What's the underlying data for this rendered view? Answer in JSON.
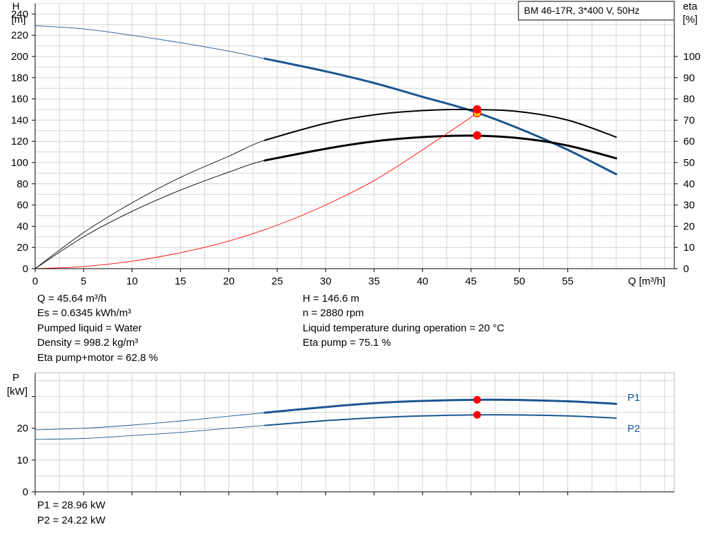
{
  "chart_data": {
    "type": "line",
    "title": "BM 46-17R, 3*400 V, 50Hz",
    "x": {
      "label": "Q [m³/h]",
      "range": [
        0,
        66
      ],
      "ticks": [
        0,
        5,
        10,
        15,
        20,
        25,
        30,
        35,
        40,
        45,
        50,
        55
      ]
    },
    "top_chart": {
      "ylabel_left": [
        "H",
        "[m]"
      ],
      "ylabel_right": [
        "eta",
        "[%]"
      ],
      "ylim_left": [
        0,
        250
      ],
      "ylim_right": [
        0,
        125
      ],
      "yticks_left": [
        0,
        20,
        40,
        60,
        80,
        100,
        120,
        140,
        160,
        180,
        200,
        220,
        240
      ],
      "yticks_right": [
        0,
        10,
        20,
        30,
        40,
        50,
        60,
        70,
        80,
        90,
        100
      ],
      "grid": true,
      "series": [
        {
          "id": "H",
          "axis": "left",
          "color": "#1a5590",
          "work_range": [
            23.7,
            60
          ],
          "x": [
            0,
            5,
            10,
            15,
            20,
            23.7,
            30,
            35,
            40,
            45,
            50,
            55,
            60
          ],
          "y": [
            229,
            226,
            220,
            213,
            205,
            198,
            186,
            175,
            162,
            149,
            132,
            112,
            89
          ]
        },
        {
          "id": "eta_pump",
          "axis": "right",
          "color": "#000000",
          "work_range": [
            23.7,
            60
          ],
          "x": [
            0,
            5,
            10,
            15,
            20,
            23.7,
            30,
            35,
            40,
            45,
            50,
            55,
            60
          ],
          "y": [
            0,
            17,
            31,
            43,
            53,
            60.5,
            68.5,
            72.5,
            74.5,
            75,
            74,
            70,
            62
          ]
        },
        {
          "id": "eta_pump_motor",
          "axis": "right",
          "color": "#000000",
          "work_range": [
            23.7,
            60
          ],
          "x": [
            0,
            5,
            10,
            15,
            20,
            23.7,
            30,
            35,
            40,
            45,
            50,
            55,
            60
          ],
          "y": [
            0,
            15,
            27,
            37,
            45.5,
            51,
            56.5,
            60,
            62,
            62.7,
            61.5,
            58,
            52
          ]
        },
        {
          "id": "system",
          "axis": "left",
          "color": "#ff0000",
          "work_range": [
            0,
            0
          ],
          "x": [
            0,
            5,
            10,
            15,
            20,
            25,
            30,
            35,
            40,
            45.64
          ],
          "y": [
            0,
            2,
            7,
            15,
            26,
            41,
            60,
            83,
            112,
            146.6
          ]
        }
      ],
      "duty_points": [
        {
          "series": "H",
          "x": 45.64,
          "y": 146.6,
          "color": "#ffcc00"
        },
        {
          "series": "eta_pump",
          "x": 45.64,
          "y": 75.1,
          "color": "#ff0000"
        },
        {
          "series": "eta_pump_motor",
          "x": 45.64,
          "y": 62.8,
          "color": "#ff0000"
        }
      ]
    },
    "bottom_chart": {
      "ylabel": [
        "P",
        "[kW]"
      ],
      "ylim": [
        0,
        37.5
      ],
      "yticks": [
        0,
        10,
        20
      ],
      "grid": true,
      "series": [
        {
          "name": "P1",
          "color": "#1a5590",
          "work_range": [
            23.7,
            60
          ],
          "x": [
            0,
            5,
            10,
            15,
            20,
            23.7,
            30,
            35,
            40,
            45.64,
            50,
            55,
            60
          ],
          "y": [
            19.5,
            20,
            21,
            22.3,
            23.8,
            24.9,
            26.7,
            27.9,
            28.6,
            28.96,
            28.9,
            28.5,
            27.7
          ]
        },
        {
          "name": "P2",
          "color": "#1a5590",
          "work_range": [
            23.7,
            60
          ],
          "x": [
            0,
            5,
            10,
            15,
            20,
            23.7,
            30,
            35,
            40,
            45.64,
            50,
            55,
            60
          ],
          "y": [
            16.5,
            16.8,
            17.7,
            18.7,
            20,
            20.9,
            22.4,
            23.3,
            23.9,
            24.22,
            24.2,
            23.9,
            23.2
          ]
        }
      ],
      "duty_points": [
        {
          "series": "P1",
          "x": 45.64,
          "y": 28.96,
          "color": "#ff0000"
        },
        {
          "series": "P2",
          "x": 45.64,
          "y": 24.22,
          "color": "#ff0000"
        }
      ]
    }
  },
  "info_left": [
    "Q = 45.64 m³/h",
    "Es = 0.6345 kWh/m³",
    "Pumped liquid = Water",
    "Density = 998.2 kg/m³",
    "Eta pump+motor = 62.8 %"
  ],
  "info_right": [
    "H = 146.6 m",
    "n = 2880 rpm",
    "Liquid temperature during operation = 20 °C",
    "Eta pump = 75.1 %"
  ],
  "power_summary": [
    "P1 = 28.96 kW",
    "P2 = 24.22 kW"
  ]
}
